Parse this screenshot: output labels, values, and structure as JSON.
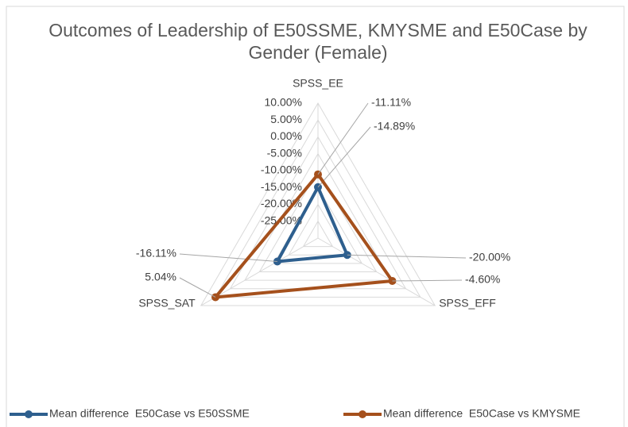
{
  "chart_data": {
    "type": "radar",
    "title": "Outcomes of Leadership of E50SSME, KMYSME and E50Case by Gender (Female)",
    "categories": [
      "SPSS_EE",
      "SPSS_EFF",
      "SPSS_SAT"
    ],
    "series": [
      {
        "name": "Mean difference  E50Case vs E50SSME",
        "color": "#2e5f8e",
        "values": [
          -14.89,
          -20.0,
          -16.11
        ],
        "value_labels": [
          "-14.89%",
          "-20.00%",
          "-16.11%"
        ]
      },
      {
        "name": "Mean difference  E50Case vs KMYSME",
        "color": "#a5501c",
        "values": [
          -11.11,
          -4.6,
          5.04
        ],
        "value_labels": [
          "-11.11%",
          "-4.60%",
          "5.04%"
        ]
      }
    ],
    "rlim": [
      -30,
      10
    ],
    "rticks": [
      {
        "value": 10,
        "label": "10.00%"
      },
      {
        "value": 5,
        "label": "5.00%"
      },
      {
        "value": 0,
        "label": "0.00%"
      },
      {
        "value": -5,
        "label": "-5.00%"
      },
      {
        "value": -10,
        "label": "-10.00%"
      },
      {
        "value": -15,
        "label": "-15.00%"
      },
      {
        "value": -20,
        "label": "-20.00%"
      },
      {
        "value": -25,
        "label": "-25.00%"
      }
    ],
    "grid": true
  }
}
